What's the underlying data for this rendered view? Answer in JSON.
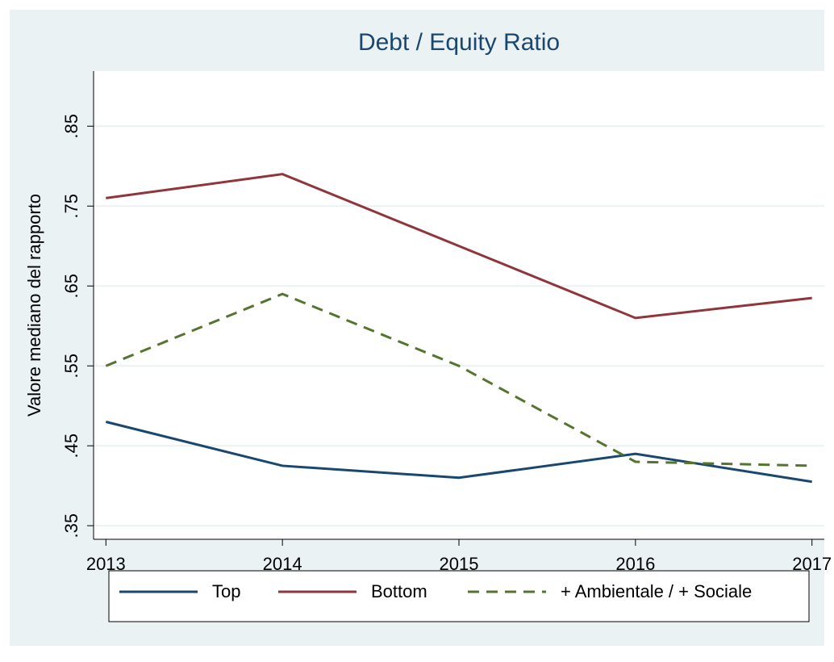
{
  "chart_data": {
    "type": "line",
    "title": "Debt / Equity Ratio",
    "y_label": "Valore mediano del rapporto",
    "x": [
      2013,
      2014,
      2015,
      2016,
      2017
    ],
    "series": [
      {
        "name": "Top",
        "color": "#1a476f",
        "dash": "solid",
        "values": [
          0.48,
          0.425,
          0.41,
          0.44,
          0.405
        ]
      },
      {
        "name": "Bottom",
        "color": "#90353b",
        "dash": "solid",
        "values": [
          0.76,
          0.79,
          0.7,
          0.61,
          0.635
        ]
      },
      {
        "name": "+ Ambientale / + Sociale",
        "color": "#55752f",
        "dash": "dashed",
        "values": [
          0.55,
          0.64,
          0.55,
          0.43,
          0.425
        ]
      }
    ],
    "xlim": [
      2012.93,
      2017.07
    ],
    "xticks": [
      2013,
      2014,
      2015,
      2016,
      2017
    ],
    "ylim": [
      0.333,
      0.919
    ],
    "yticks": [
      {
        "value": 0.35,
        "label": ".35"
      },
      {
        "value": 0.45,
        "label": ".45"
      },
      {
        "value": 0.55,
        "label": ".55"
      },
      {
        "value": 0.65,
        "label": ".65"
      },
      {
        "value": 0.75,
        "label": ".75"
      },
      {
        "value": 0.85,
        "label": ".85"
      }
    ],
    "grid": true,
    "legend": "bottom"
  }
}
